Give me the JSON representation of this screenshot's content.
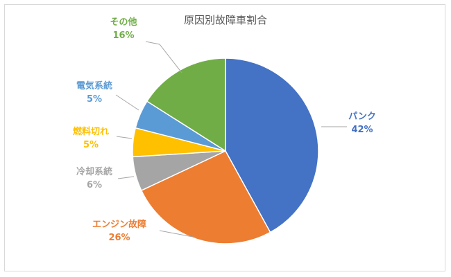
{
  "chart_data": {
    "type": "pie",
    "title": "原因別故障車割合",
    "categories": [
      "パンク",
      "エンジン故障",
      "冷却系統",
      "燃料切れ",
      "電気系統",
      "その他"
    ],
    "values": [
      42,
      26,
      6,
      5,
      5,
      16
    ],
    "value_labels": [
      "42%",
      "26%",
      "6%",
      "5%",
      "5%",
      "16%"
    ],
    "colors": [
      "#4472C4",
      "#ED7D31",
      "#A5A5A5",
      "#FFC000",
      "#5B9BD5",
      "#70AD47"
    ],
    "start_angle_deg": 0,
    "direction": "clockwise",
    "legend": "none",
    "labels_outside_with_leader_lines": true
  }
}
